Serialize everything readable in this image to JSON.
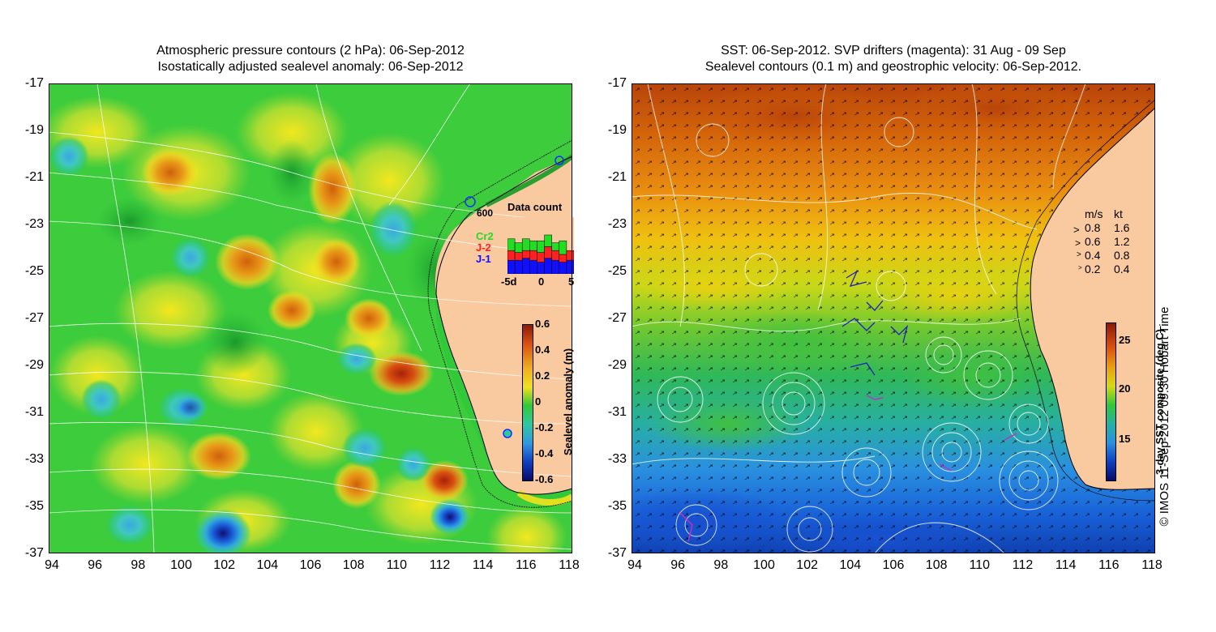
{
  "left_panel": {
    "title_line1": "Atmospheric pressure contours (2 hPa): 06-Sep-2012",
    "title_line2": "Isostatically adjusted sealevel anomaly: 06-Sep-2012",
    "depth_label": "600",
    "data_count": {
      "title": "Data count",
      "legend": [
        {
          "label": "Cr2",
          "color": "#22dd22"
        },
        {
          "label": "J-2",
          "color": "#ff2020"
        },
        {
          "label": "J-1",
          "color": "#1010ff"
        }
      ],
      "x_ticks": [
        "-5d",
        "0",
        "5"
      ],
      "bars": [
        {
          "j1": 0.35,
          "j2": 0.25,
          "cr2": 0.3
        },
        {
          "j1": 0.35,
          "j2": 0.2,
          "cr2": 0.25
        },
        {
          "j1": 0.4,
          "j2": 0.2,
          "cr2": 0.3
        },
        {
          "j1": 0.35,
          "j2": 0.25,
          "cr2": 0.25
        },
        {
          "j1": 0.3,
          "j2": 0.25,
          "cr2": 0.3
        },
        {
          "j1": 0.4,
          "j2": 0.3,
          "cr2": 0.3
        },
        {
          "j1": 0.35,
          "j2": 0.25,
          "cr2": 0.2
        },
        {
          "j1": 0.3,
          "j2": 0.2,
          "cr2": 0.35
        },
        {
          "j1": 0.35,
          "j2": 0.25,
          "cr2": 0.0
        }
      ]
    },
    "colorbar": {
      "label": "Sealevel anomaly (m)",
      "ticks": [
        "0.6",
        "0.4",
        "0.2",
        "0",
        "-0.2",
        "-0.4",
        "-0.6"
      ]
    }
  },
  "right_panel": {
    "title_line1": "SST: 06-Sep-2012. SVP drifters (magenta): 31 Aug - 09 Sep",
    "title_line2": "Sealevel contours (0.1 m) and geostrophic velocity: 06-Sep-2012.",
    "velocity_key": {
      "header_ms": "m/s",
      "header_kt": "kt",
      "rows": [
        {
          "ms": "0.8",
          "kt": "1.6"
        },
        {
          "ms": "0.6",
          "kt": "1.2"
        },
        {
          "ms": "0.4",
          "kt": "0.8"
        },
        {
          "ms": "0.2",
          "kt": "0.4"
        }
      ]
    },
    "colorbar": {
      "label": "3-day SST composite (deg C)",
      "ticks": [
        "25",
        "20",
        "15"
      ]
    }
  },
  "credit": "© IMOS 11-Sep-2012 09:30 Hobart Time",
  "axes": {
    "lat_ticks": [
      "-17",
      "-19",
      "-21",
      "-23",
      "-25",
      "-27",
      "-29",
      "-31",
      "-33",
      "-35",
      "-37"
    ],
    "lon_ticks": [
      "94",
      "96",
      "98",
      "100",
      "102",
      "104",
      "106",
      "108",
      "110",
      "112",
      "114",
      "116",
      "118"
    ]
  },
  "colors": {
    "land": "#f9c9a0",
    "slev_green": "#3ccc3c",
    "sst_orange": "#e0780a",
    "sst_blue": "#2a8ee0"
  }
}
